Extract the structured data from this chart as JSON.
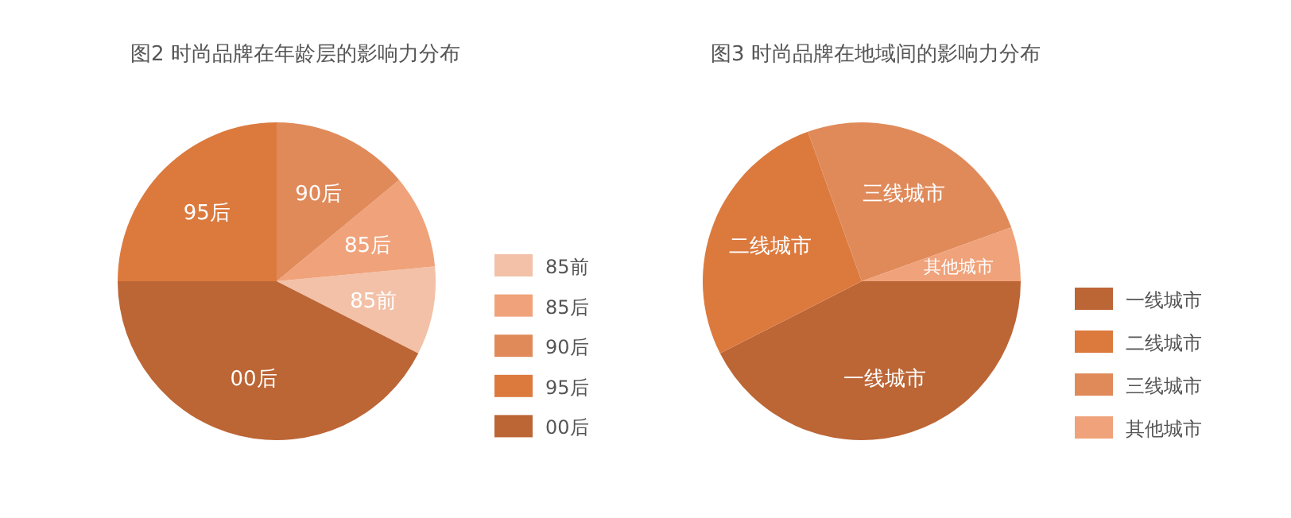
{
  "chart_data": [
    {
      "type": "pie",
      "title": "图2  时尚品牌在年龄层的影响力分布",
      "categories": [
        "85前",
        "85后",
        "90后",
        "95后",
        "00后"
      ],
      "values": [
        9,
        9.5,
        14,
        25,
        42.5
      ],
      "colors": [
        "#f2c1a8",
        "#f0a27a",
        "#e08a5a",
        "#dc7a3e",
        "#bc6535"
      ],
      "legend": "right"
    },
    {
      "type": "pie",
      "title": "图3  时尚品牌在地域间的影响力分布",
      "categories": [
        "一线城市",
        "二线城市",
        "三线城市",
        "其他城市"
      ],
      "values": [
        42.5,
        27,
        25,
        5.5
      ],
      "colors": [
        "#bc6535",
        "#dc7a3e",
        "#e08a5a",
        "#f0a27a"
      ],
      "legend": "right"
    }
  ]
}
